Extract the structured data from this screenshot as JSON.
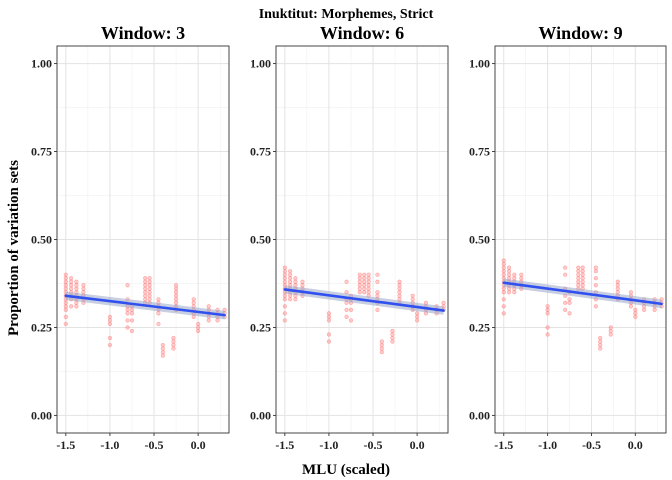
{
  "chart_data": {
    "type": "scatter",
    "title": "Inuktitut: Morphemes, Strict",
    "xlabel": "MLU (scaled)",
    "ylabel": "Proportion of variation sets",
    "x_ticks": [
      -1.5,
      -1.0,
      -0.5,
      0.0
    ],
    "x_tick_labels": [
      "-1.5",
      "-1.0",
      "-0.5",
      "0.0"
    ],
    "y_ticks": [
      0.0,
      0.25,
      0.5,
      0.75,
      1.0
    ],
    "y_tick_labels": [
      "0.00",
      "0.25",
      "0.50",
      "0.75",
      "1.00"
    ],
    "xlim": [
      -1.6,
      0.35
    ],
    "ylim": [
      -0.05,
      1.05
    ],
    "grid": true,
    "colors": {
      "points": "#ff6e6e",
      "trend": "#3050f0",
      "band": "#9aa8c8"
    },
    "panels": [
      {
        "title": "Window: 3",
        "trend": {
          "x": [
            -1.5,
            0.3
          ],
          "y": [
            0.34,
            0.285
          ]
        },
        "clusters": [
          {
            "x": -1.5,
            "y": [
              0.26,
              0.28,
              0.3,
              0.31,
              0.32,
              0.33,
              0.34,
              0.35,
              0.36,
              0.37,
              0.38,
              0.39,
              0.4
            ]
          },
          {
            "x": -1.44,
            "y": [
              0.31,
              0.33,
              0.34,
              0.35,
              0.36,
              0.37,
              0.38,
              0.39
            ]
          },
          {
            "x": -1.38,
            "y": [
              0.31,
              0.32,
              0.33,
              0.34,
              0.35,
              0.36,
              0.37,
              0.38
            ]
          },
          {
            "x": -1.3,
            "y": [
              0.32,
              0.33,
              0.34,
              0.35,
              0.36,
              0.37
            ]
          },
          {
            "x": -1.0,
            "y": [
              0.2,
              0.22,
              0.26,
              0.27,
              0.28
            ]
          },
          {
            "x": -0.8,
            "y": [
              0.25,
              0.27,
              0.29,
              0.3,
              0.31,
              0.33,
              0.37
            ]
          },
          {
            "x": -0.75,
            "y": [
              0.24,
              0.27,
              0.29,
              0.3,
              0.31
            ]
          },
          {
            "x": -0.6,
            "y": [
              0.32,
              0.33,
              0.34,
              0.35,
              0.36,
              0.37,
              0.38,
              0.39
            ]
          },
          {
            "x": -0.55,
            "y": [
              0.32,
              0.33,
              0.34,
              0.35,
              0.36,
              0.37,
              0.38,
              0.39
            ]
          },
          {
            "x": -0.45,
            "y": [
              0.26,
              0.29,
              0.3,
              0.31,
              0.32,
              0.33
            ]
          },
          {
            "x": -0.4,
            "y": [
              0.17,
              0.18,
              0.19,
              0.2
            ]
          },
          {
            "x": -0.28,
            "y": [
              0.19,
              0.2,
              0.21,
              0.22
            ]
          },
          {
            "x": -0.25,
            "y": [
              0.3,
              0.31,
              0.32,
              0.33,
              0.34,
              0.35,
              0.36,
              0.37
            ]
          },
          {
            "x": -0.05,
            "y": [
              0.28,
              0.29,
              0.3,
              0.31,
              0.32,
              0.33
            ]
          },
          {
            "x": 0.0,
            "y": [
              0.24,
              0.25,
              0.26
            ]
          },
          {
            "x": 0.12,
            "y": [
              0.27,
              0.28,
              0.29,
              0.3,
              0.31
            ]
          },
          {
            "x": 0.22,
            "y": [
              0.27,
              0.28,
              0.29,
              0.3
            ]
          },
          {
            "x": 0.3,
            "y": [
              0.28,
              0.29,
              0.3
            ]
          }
        ]
      },
      {
        "title": "Window: 6",
        "trend": {
          "x": [
            -1.5,
            0.3
          ],
          "y": [
            0.358,
            0.298
          ]
        },
        "clusters": [
          {
            "x": -1.5,
            "y": [
              0.27,
              0.29,
              0.31,
              0.33,
              0.34,
              0.35,
              0.36,
              0.37,
              0.38,
              0.39,
              0.4,
              0.41,
              0.42
            ]
          },
          {
            "x": -1.44,
            "y": [
              0.33,
              0.34,
              0.35,
              0.36,
              0.37,
              0.38,
              0.39,
              0.4,
              0.41
            ]
          },
          {
            "x": -1.38,
            "y": [
              0.33,
              0.34,
              0.35,
              0.36,
              0.37,
              0.38,
              0.39
            ]
          },
          {
            "x": -1.3,
            "y": [
              0.34,
              0.35,
              0.36,
              0.37,
              0.38
            ]
          },
          {
            "x": -1.0,
            "y": [
              0.21,
              0.23,
              0.27,
              0.28,
              0.29
            ]
          },
          {
            "x": -0.8,
            "y": [
              0.28,
              0.3,
              0.32,
              0.33,
              0.35,
              0.38
            ]
          },
          {
            "x": -0.75,
            "y": [
              0.27,
              0.3,
              0.32,
              0.33,
              0.34
            ]
          },
          {
            "x": -0.65,
            "y": [
              0.35,
              0.36,
              0.37,
              0.38,
              0.39,
              0.4
            ]
          },
          {
            "x": -0.6,
            "y": [
              0.35,
              0.36,
              0.37,
              0.38,
              0.39,
              0.4
            ]
          },
          {
            "x": -0.55,
            "y": [
              0.34,
              0.35,
              0.36,
              0.37,
              0.38,
              0.39,
              0.4
            ]
          },
          {
            "x": -0.45,
            "y": [
              0.3,
              0.32,
              0.33,
              0.34,
              0.35,
              0.38,
              0.4
            ]
          },
          {
            "x": -0.4,
            "y": [
              0.18,
              0.19,
              0.2,
              0.21
            ]
          },
          {
            "x": -0.28,
            "y": [
              0.21,
              0.22,
              0.23,
              0.24
            ]
          },
          {
            "x": -0.2,
            "y": [
              0.32,
              0.33,
              0.34,
              0.35,
              0.36,
              0.37,
              0.38
            ]
          },
          {
            "x": -0.05,
            "y": [
              0.3,
              0.31,
              0.32,
              0.33,
              0.34
            ]
          },
          {
            "x": 0.0,
            "y": [
              0.27,
              0.28,
              0.29
            ]
          },
          {
            "x": 0.1,
            "y": [
              0.29,
              0.3,
              0.31,
              0.32
            ]
          },
          {
            "x": 0.22,
            "y": [
              0.29,
              0.3,
              0.31
            ]
          },
          {
            "x": 0.3,
            "y": [
              0.3,
              0.31,
              0.32
            ]
          }
        ]
      },
      {
        "title": "Window: 9",
        "trend": {
          "x": [
            -1.5,
            0.3
          ],
          "y": [
            0.377,
            0.317
          ]
        },
        "clusters": [
          {
            "x": -1.5,
            "y": [
              0.29,
              0.31,
              0.33,
              0.35,
              0.36,
              0.37,
              0.38,
              0.39,
              0.4,
              0.41,
              0.42,
              0.43,
              0.44
            ]
          },
          {
            "x": -1.44,
            "y": [
              0.35,
              0.36,
              0.37,
              0.38,
              0.39,
              0.4,
              0.41,
              0.42
            ]
          },
          {
            "x": -1.38,
            "y": [
              0.35,
              0.36,
              0.37,
              0.38,
              0.39,
              0.4
            ]
          },
          {
            "x": -1.3,
            "y": [
              0.36,
              0.37,
              0.38,
              0.39,
              0.4
            ]
          },
          {
            "x": -1.0,
            "y": [
              0.23,
              0.25,
              0.29,
              0.3,
              0.31
            ]
          },
          {
            "x": -0.8,
            "y": [
              0.3,
              0.32,
              0.34,
              0.36,
              0.4,
              0.42
            ]
          },
          {
            "x": -0.75,
            "y": [
              0.29,
              0.32,
              0.33,
              0.35
            ]
          },
          {
            "x": -0.65,
            "y": [
              0.36,
              0.37,
              0.38,
              0.39,
              0.4,
              0.41,
              0.42
            ]
          },
          {
            "x": -0.6,
            "y": [
              0.36,
              0.37,
              0.38,
              0.39,
              0.4,
              0.41,
              0.42
            ]
          },
          {
            "x": -0.45,
            "y": [
              0.31,
              0.33,
              0.35,
              0.37,
              0.39,
              0.41,
              0.42
            ]
          },
          {
            "x": -0.4,
            "y": [
              0.19,
              0.2,
              0.21,
              0.22
            ]
          },
          {
            "x": -0.28,
            "y": [
              0.23,
              0.24,
              0.25
            ]
          },
          {
            "x": -0.2,
            "y": [
              0.33,
              0.34,
              0.35,
              0.36,
              0.37,
              0.38
            ]
          },
          {
            "x": -0.05,
            "y": [
              0.31,
              0.32,
              0.33,
              0.34,
              0.35
            ]
          },
          {
            "x": 0.0,
            "y": [
              0.28,
              0.29,
              0.3
            ]
          },
          {
            "x": 0.1,
            "y": [
              0.3,
              0.31,
              0.32,
              0.33
            ]
          },
          {
            "x": 0.22,
            "y": [
              0.3,
              0.31,
              0.32,
              0.33
            ]
          },
          {
            "x": 0.3,
            "y": [
              0.31,
              0.32,
              0.33
            ]
          }
        ]
      }
    ]
  }
}
